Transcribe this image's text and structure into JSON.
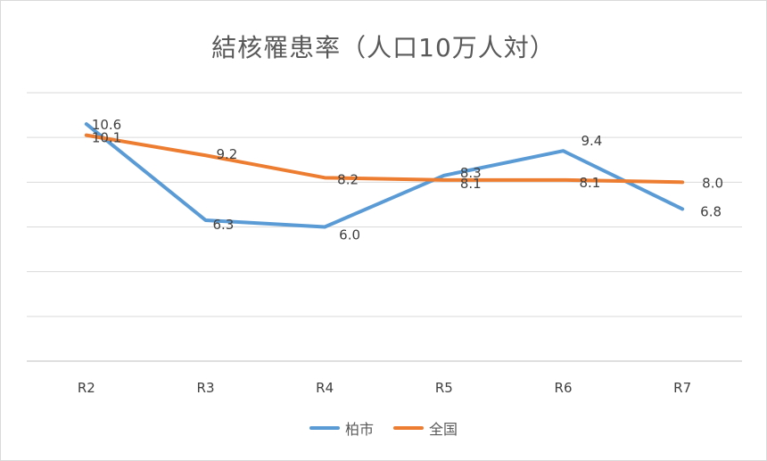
{
  "chart_data": {
    "type": "line",
    "title": "結核罹患率（人口10万人対）",
    "categories": [
      "R2",
      "R3",
      "R4",
      "R5",
      "R6",
      "R7"
    ],
    "ylim": [
      0,
      12
    ],
    "grid": true,
    "legend_position": "bottom",
    "series": [
      {
        "name": "柏市",
        "color": "#5b9bd5",
        "values": [
          10.6,
          6.3,
          6.0,
          8.3,
          9.4,
          6.8
        ],
        "labels": [
          "10.6",
          "6.3",
          "6.0",
          "8.3",
          "9.4",
          "6.8"
        ]
      },
      {
        "name": "全国",
        "color": "#ed7d31",
        "values": [
          10.1,
          9.2,
          8.2,
          8.1,
          8.1,
          8.0
        ],
        "labels": [
          "10.1",
          "9.2",
          "8.2",
          "8.1",
          "8.1",
          "8.0"
        ]
      }
    ]
  }
}
